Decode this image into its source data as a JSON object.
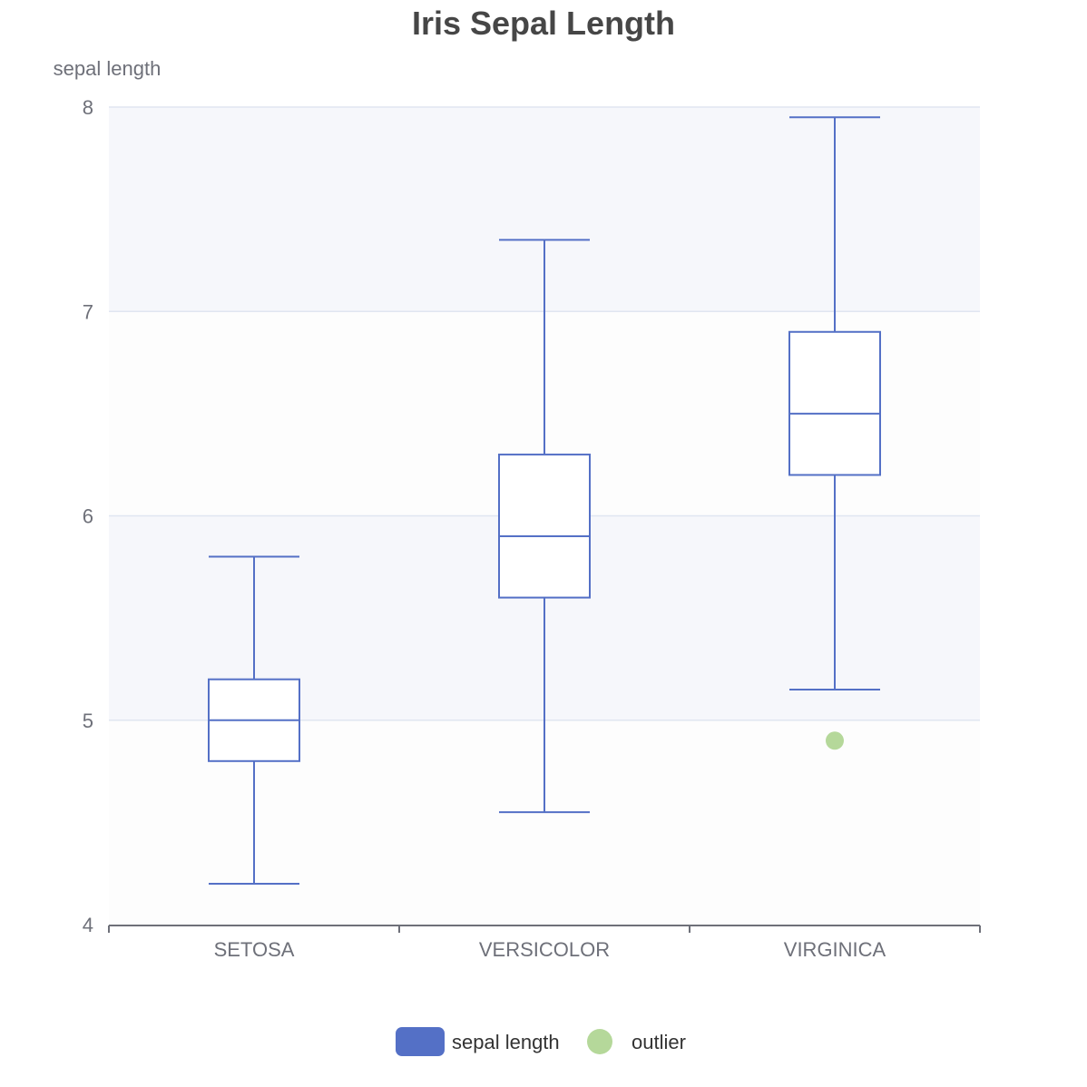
{
  "chart_data": {
    "type": "boxplot",
    "title": "Iris Sepal Length",
    "ylabel": "sepal length",
    "xlabel": "",
    "categories": [
      "SETOSA",
      "VERSICOLOR",
      "VIRGINICA"
    ],
    "ylim": [
      4,
      8
    ],
    "yticks": [
      4,
      5,
      6,
      7,
      8
    ],
    "grid": true,
    "legend_position": "bottom",
    "series": [
      {
        "name": "sepal length",
        "type": "boxplot",
        "color": "#5470c6",
        "boxes": [
          {
            "category": "SETOSA",
            "min": 4.2,
            "q1": 4.8,
            "median": 5.0,
            "q3": 5.2,
            "max": 5.8
          },
          {
            "category": "VERSICOLOR",
            "min": 4.55,
            "q1": 5.6,
            "median": 5.9,
            "q3": 6.3,
            "max": 7.35
          },
          {
            "category": "VIRGINICA",
            "min": 5.15,
            "q1": 6.2,
            "median": 6.5,
            "q3": 6.9,
            "max": 7.95
          }
        ]
      },
      {
        "name": "outlier",
        "type": "scatter",
        "color": "#b5d89a",
        "points": [
          {
            "category": "VIRGINICA",
            "value": 4.9
          }
        ]
      }
    ]
  },
  "colors": {
    "box_stroke": "#5470c6",
    "outlier": "#b5d89a",
    "band_dark": "#f6f7fb",
    "band_light": "#fdfdfd",
    "gridline": "#e0e6f1",
    "axis": "#6e7079"
  }
}
